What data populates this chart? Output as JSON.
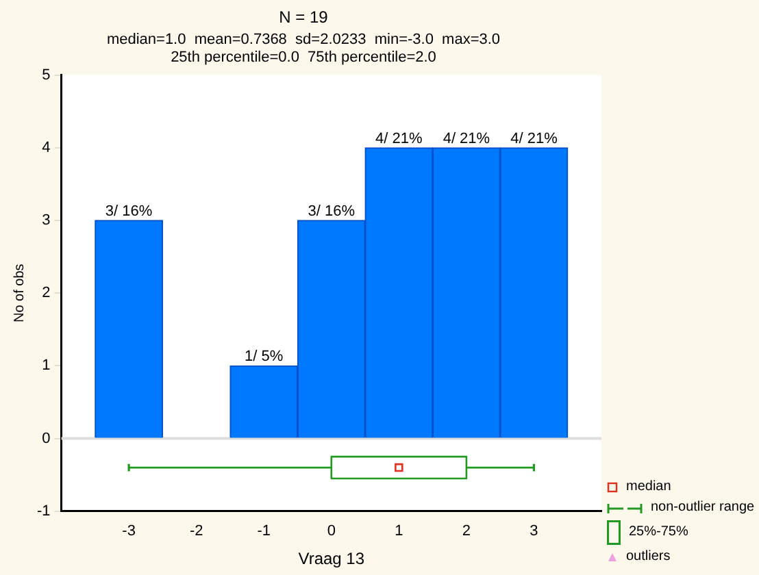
{
  "chart_data": {
    "type": "histogram",
    "title": "N = 19",
    "subtitle": "median=1.0  mean=0.7368  sd=2.0233  min=-3.0  max=3.0\n25th percentile=0.0  75th percentile=2.0",
    "xlabel": "Vraag 13",
    "ylabel": "No of obs",
    "bins": [
      -3.5,
      -2.5,
      -1.5,
      -0.5,
      0.5,
      1.5,
      2.5,
      3.5
    ],
    "series": [
      {
        "color": "#0078ff",
        "values": [
          3,
          0,
          1,
          3,
          4,
          4,
          4
        ],
        "value_labels": [
          "3/ 16%",
          null,
          "1/ 5%",
          "3/ 16%",
          "4/ 21%",
          "4/ 21%",
          "4/ 21%"
        ]
      },
      {
        "type": "scatter",
        "name": "median",
        "color": "#e03020",
        "marker": "square",
        "x": [
          1
        ],
        "values": [
          -0.4
        ]
      },
      {
        "type": "line",
        "name": "non-outlier range",
        "color": "#229922",
        "x": [
          -3,
          0,
          1,
          2,
          3
        ],
        "values": [
          -0.4,
          -0.4,
          null,
          -0.4,
          -0.4
        ],
        "errors": [
          0.05,
          null,
          null,
          null,
          0.05
        ]
      },
      {
        "type": "line",
        "name": "25%-75%",
        "color": "#229922",
        "x": [
          0,
          2
        ],
        "values": [
          null,
          null
        ],
        "lower": [
          -0.55,
          -0.55
        ],
        "upper": [
          -0.25,
          -0.25
        ]
      },
      {
        "type": "scatter",
        "name": "outliers",
        "color": "#f0a0e0",
        "marker": "triangle"
      }
    ],
    "xlim": [
      -4,
      4
    ],
    "xticks": [
      -3,
      -2,
      -1,
      0,
      1,
      2,
      3
    ],
    "ylim": [
      -1,
      5
    ],
    "yticks": [
      -1,
      0,
      1,
      2,
      3,
      4,
      5
    ],
    "ref_lines": [
      {
        "axis": "y",
        "value": 0,
        "color": "#dddddd"
      }
    ],
    "grid": false,
    "legend": "bottom right"
  }
}
